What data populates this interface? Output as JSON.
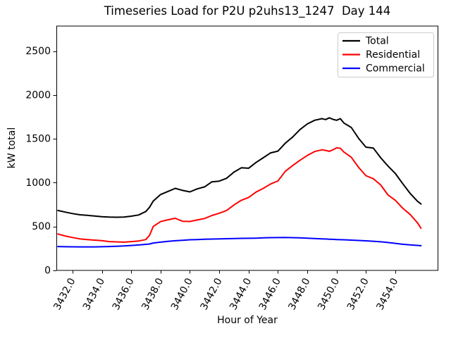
{
  "figure": {
    "background": "#ffffff",
    "axes_color": "#000000",
    "legend_border_color": "#cccccc"
  },
  "chart_data": {
    "type": "line",
    "title": "Timeseries Load for P2U p2uhs13_1247  Day 144",
    "xlabel": "Hour of Year",
    "ylabel": "kW total",
    "xlim": [
      3430.9,
      3456.93
    ],
    "ylim": [
      0,
      2790
    ],
    "grid": false,
    "legend_position": "upper right",
    "xticks": [
      3432,
      3434,
      3436,
      3438,
      3440,
      3442,
      3444,
      3446,
      3448,
      3450,
      3452,
      3454
    ],
    "xtick_labels": [
      "3432.0",
      "3434.0",
      "3436.0",
      "3438.0",
      "3440.0",
      "3442.0",
      "3444.0",
      "3446.0",
      "3448.0",
      "3450.0",
      "3452.0",
      "3454.0"
    ],
    "xtick_rotation_deg": 62,
    "yticks": [
      0,
      500,
      1000,
      1500,
      2000,
      2500
    ],
    "ytick_labels": [
      "0",
      "500",
      "1000",
      "1500",
      "2000",
      "2500"
    ],
    "x": [
      3431,
      3431.5,
      3432,
      3432.5,
      3433,
      3433.5,
      3434,
      3434.5,
      3435,
      3435.5,
      3436,
      3436.5,
      3437,
      3437.25,
      3437.5,
      3438,
      3438.5,
      3439,
      3439.5,
      3440,
      3440.5,
      3441,
      3441.5,
      3442,
      3442.5,
      3443,
      3443.5,
      3444,
      3444.5,
      3445,
      3445.5,
      3446,
      3446.5,
      3447,
      3447.5,
      3448,
      3448.5,
      3449,
      3449.25,
      3449.5,
      3449.75,
      3450,
      3450.25,
      3450.5,
      3451,
      3451.5,
      3452,
      3452.5,
      3453,
      3453.5,
      3454,
      3454.5,
      3455,
      3455.5,
      3455.75
    ],
    "series": [
      {
        "name": "Total",
        "color": "#000000",
        "values": [
          683,
          665,
          648,
          634,
          628,
          620,
          612,
          608,
          606,
          608,
          618,
          632,
          672,
          720,
          790,
          865,
          900,
          935,
          912,
          895,
          930,
          952,
          1010,
          1018,
          1050,
          1120,
          1170,
          1165,
          1230,
          1285,
          1340,
          1360,
          1450,
          1520,
          1605,
          1670,
          1712,
          1730,
          1720,
          1740,
          1722,
          1712,
          1730,
          1680,
          1630,
          1505,
          1405,
          1395,
          1285,
          1190,
          1105,
          990,
          880,
          790,
          757
        ]
      },
      {
        "name": "Residential",
        "color": "#ff0000",
        "values": [
          415,
          393,
          375,
          360,
          352,
          345,
          340,
          328,
          325,
          322,
          328,
          335,
          352,
          400,
          500,
          556,
          577,
          594,
          560,
          558,
          575,
          592,
          626,
          652,
          683,
          745,
          800,
          832,
          893,
          935,
          985,
          1020,
          1130,
          1195,
          1255,
          1310,
          1355,
          1375,
          1368,
          1358,
          1375,
          1398,
          1392,
          1350,
          1290,
          1175,
          1080,
          1045,
          975,
          860,
          800,
          710,
          640,
          545,
          480
        ]
      },
      {
        "name": "Commercial",
        "color": "#0000ff",
        "values": [
          272,
          270,
          269,
          268,
          268,
          268,
          270,
          272,
          275,
          279,
          284,
          290,
          297,
          301,
          312,
          322,
          331,
          338,
          344,
          349,
          352,
          355,
          357,
          359,
          361,
          363,
          365,
          366,
          368,
          371,
          373,
          374,
          375,
          373,
          371,
          368,
          364,
          360,
          358,
          356,
          354,
          352,
          350,
          349,
          345,
          341,
          337,
          332,
          326,
          318,
          308,
          298,
          291,
          285,
          282
        ]
      }
    ]
  }
}
